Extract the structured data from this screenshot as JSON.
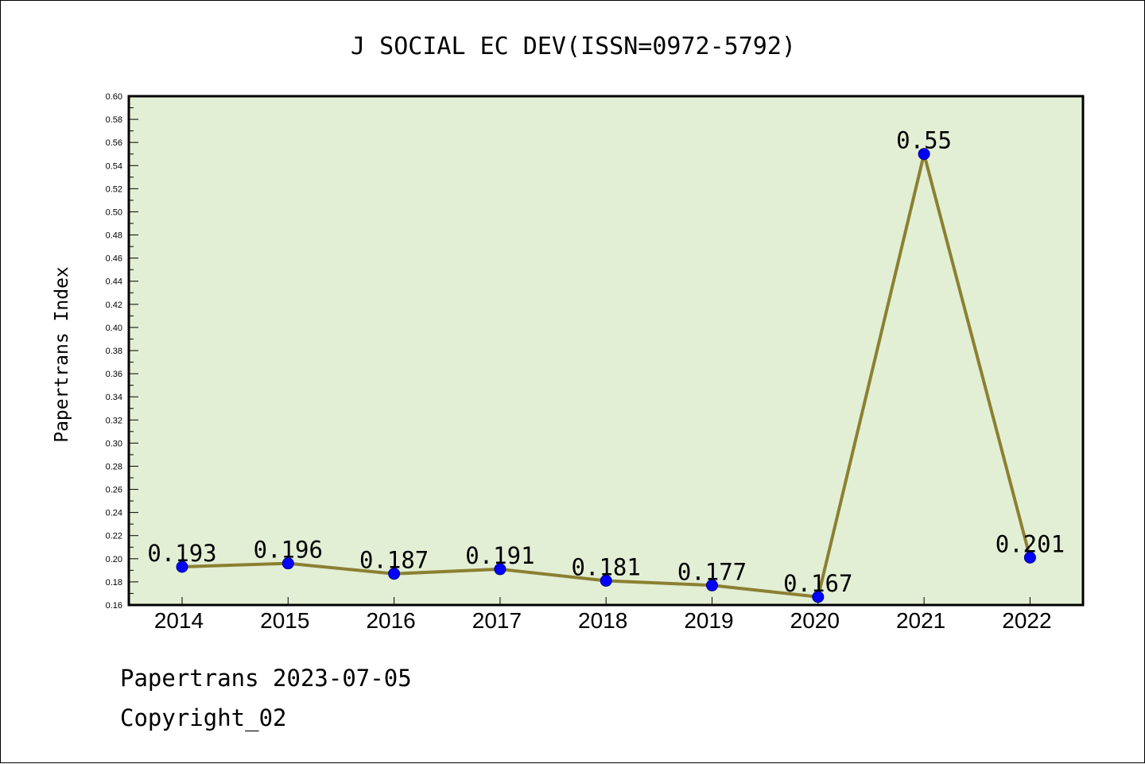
{
  "chart_data": {
    "type": "line",
    "title": "J SOCIAL EC DEV(ISSN=0972-5792)",
    "ylabel": "Papertrans Index",
    "xlabel": "",
    "categories": [
      "2014",
      "2015",
      "2016",
      "2017",
      "2018",
      "2019",
      "2020",
      "2021",
      "2022"
    ],
    "values": [
      0.193,
      0.196,
      0.187,
      0.191,
      0.181,
      0.177,
      0.167,
      0.55,
      0.201
    ],
    "data_labels": [
      "0.193",
      "0.196",
      "0.187",
      "0.191",
      "0.181",
      "0.177",
      "0.167",
      "0.55",
      "0.201"
    ],
    "ylim": [
      0.16,
      0.6
    ],
    "yticks": [
      "0.16",
      "0.18",
      "0.20",
      "0.22",
      "0.24",
      "0.26",
      "0.28",
      "0.30",
      "0.32",
      "0.34",
      "0.36",
      "0.38",
      "0.40",
      "0.42",
      "0.44",
      "0.46",
      "0.48",
      "0.50",
      "0.52",
      "0.54",
      "0.56",
      "0.58",
      "0.60"
    ],
    "grid": false,
    "colors": {
      "plot_background": "#e2efd5",
      "line": "#8b8032",
      "marker": "#0000ff"
    }
  },
  "footer": {
    "line1": "Papertrans 2023-07-05",
    "line2": "Copyright_02"
  }
}
